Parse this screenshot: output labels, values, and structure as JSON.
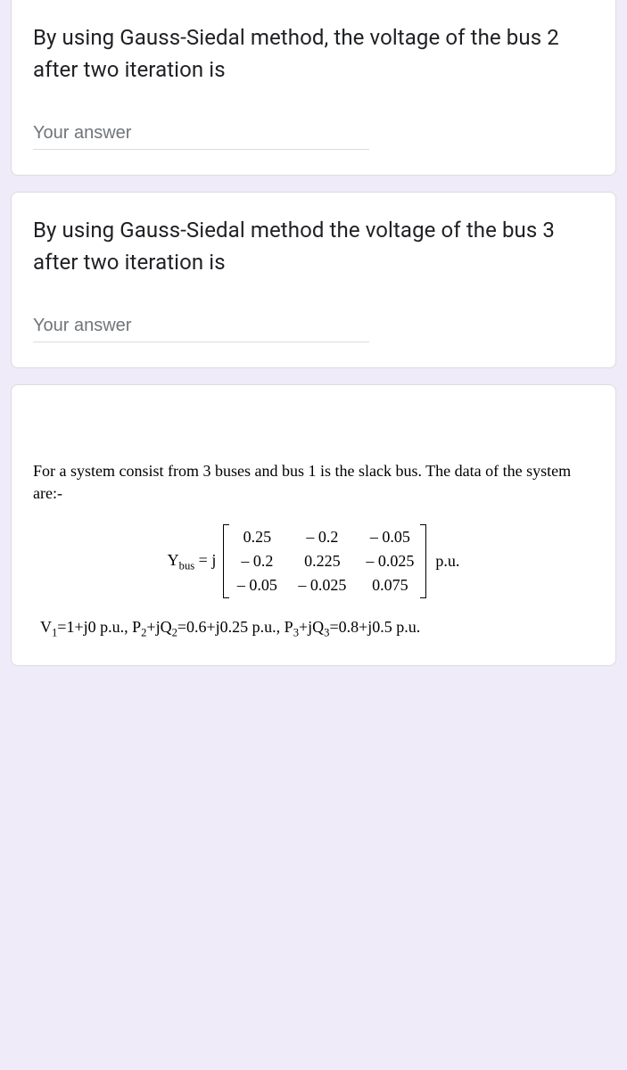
{
  "q1": {
    "text": "By using Gauss-Siedal method, the voltage of the bus 2 after two iteration is",
    "placeholder": "Your answer"
  },
  "q2": {
    "text": "By using Gauss-Siedal method the voltage of the bus 3 after two iteration is",
    "placeholder": "Your answer"
  },
  "system": {
    "intro": "For a system consist from 3 buses and bus 1 is the slack bus. The data of the system are:-",
    "matrix_label_html": "Y<sub>bus</sub> = j",
    "rows": [
      [
        "0.25",
        "– 0.2",
        "– 0.05"
      ],
      [
        "– 0.2",
        "0.225",
        "– 0.025"
      ],
      [
        "– 0.05",
        "– 0.025",
        "0.075"
      ]
    ],
    "unit": "p.u.",
    "conditions_html": "V<sub>1</sub>=1+j0 p.u., P<sub>2</sub>+jQ<sub>2</sub>=0.6+j0.25 p.u., P<sub>3</sub>+jQ<sub>3</sub>=0.8+j0.5 p.u."
  },
  "colors": {
    "page_bg": "#f0ebf8",
    "card_bg": "#ffffff",
    "card_border": "#dadce0",
    "text_primary": "#202124",
    "placeholder": "#70757a"
  }
}
